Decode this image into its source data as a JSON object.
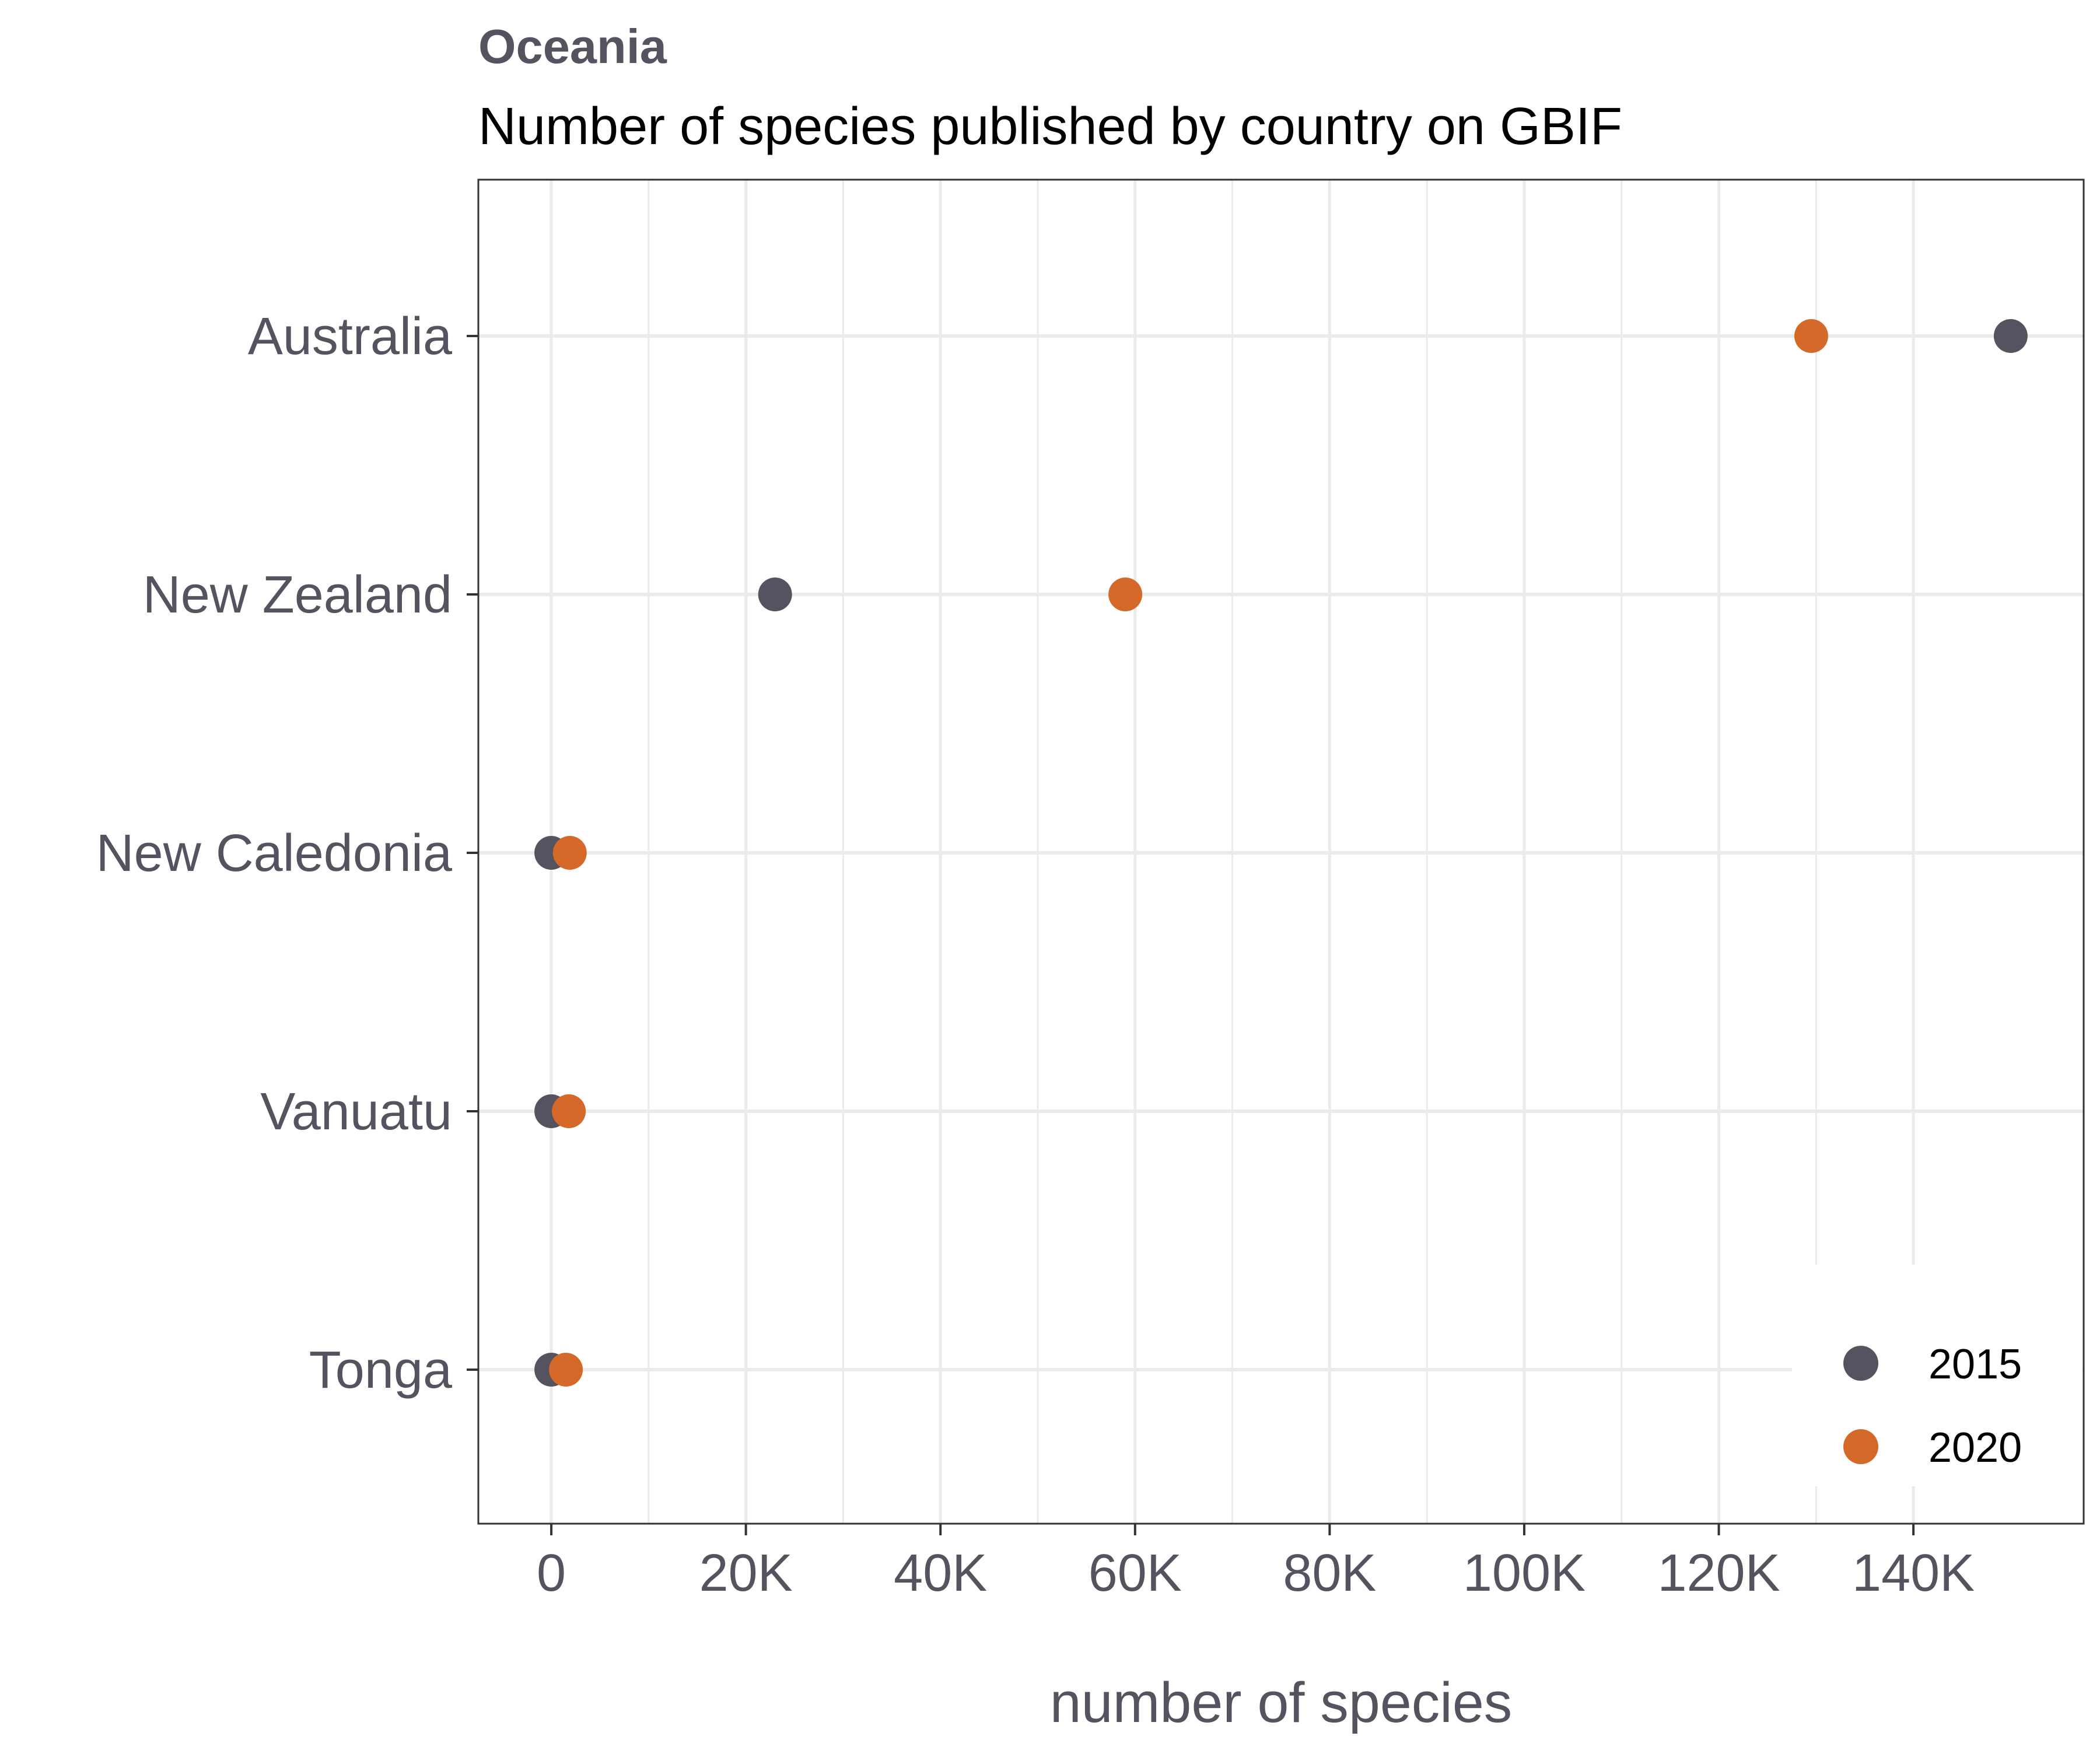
{
  "chart_data": {
    "type": "scatter",
    "title": "Oceania",
    "subtitle": "Number of species published by country on GBIF",
    "xlabel": "number of species",
    "ylabel": "",
    "categories": [
      "Australia",
      "New Zealand",
      "New Caledonia",
      "Vanuatu",
      "Tonga"
    ],
    "x_ticks": [
      0,
      20000,
      40000,
      60000,
      80000,
      100000,
      120000,
      140000
    ],
    "x_tick_labels": [
      "0",
      "20K",
      "40K",
      "60K",
      "80K",
      "100K",
      "120K",
      "140K"
    ],
    "xlim": [
      -7500,
      157500
    ],
    "series": [
      {
        "name": "2015",
        "color": "#55535f",
        "values": [
          150000,
          23000,
          0,
          0,
          0
        ]
      },
      {
        "name": "2020",
        "color": "#d4692a",
        "values": [
          129500,
          59000,
          1900,
          1800,
          1500
        ]
      }
    ],
    "legend": {
      "position": "bottom-right",
      "entries": [
        "2015",
        "2020"
      ]
    },
    "grid": true,
    "colors": {
      "text": "#55535f",
      "subtitle": "#000000",
      "grid": "#ebebeb",
      "panel_border": "#333333",
      "background": "#ffffff"
    }
  }
}
